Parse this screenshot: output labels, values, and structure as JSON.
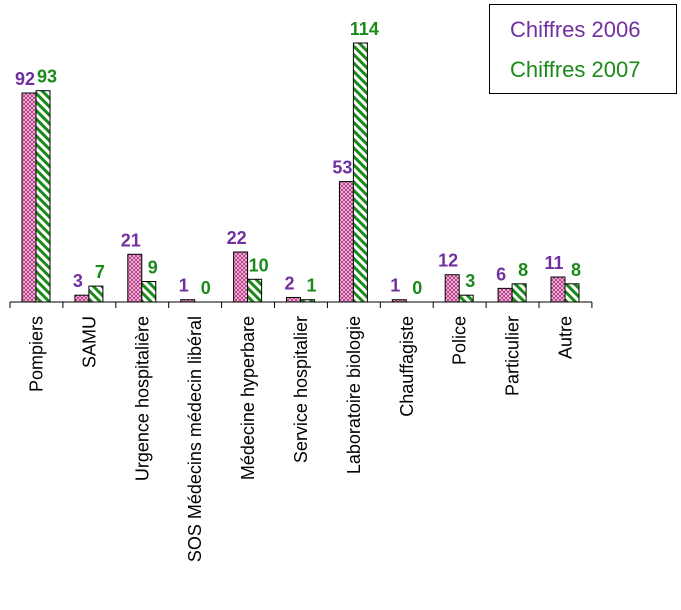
{
  "chart_data": {
    "type": "bar",
    "title": "",
    "xlabel": "",
    "ylabel": "",
    "ylim": [
      0,
      114
    ],
    "grid": false,
    "legend_position": "top-right",
    "categories": [
      "Pompiers",
      "SAMU",
      "Urgence hospitalière",
      "SOS Médecins médecin libéral",
      "Médecine hyperbare",
      "Service hospitalier",
      "Laboratoire biologie",
      "Chauffagiste",
      "Police",
      "Particulier",
      "Autre"
    ],
    "series": [
      {
        "name": "Chiffres 2006",
        "values": [
          92,
          3,
          21,
          1,
          22,
          2,
          53,
          1,
          12,
          6,
          11
        ],
        "label_color": "#7030a0",
        "fill": "pink-crosshatch"
      },
      {
        "name": "Chiffres 2007",
        "values": [
          93,
          7,
          9,
          0,
          10,
          1,
          114,
          0,
          3,
          8,
          8
        ],
        "label_color": "#1a8a1a",
        "fill": "green-diagonal-stripes"
      }
    ]
  }
}
